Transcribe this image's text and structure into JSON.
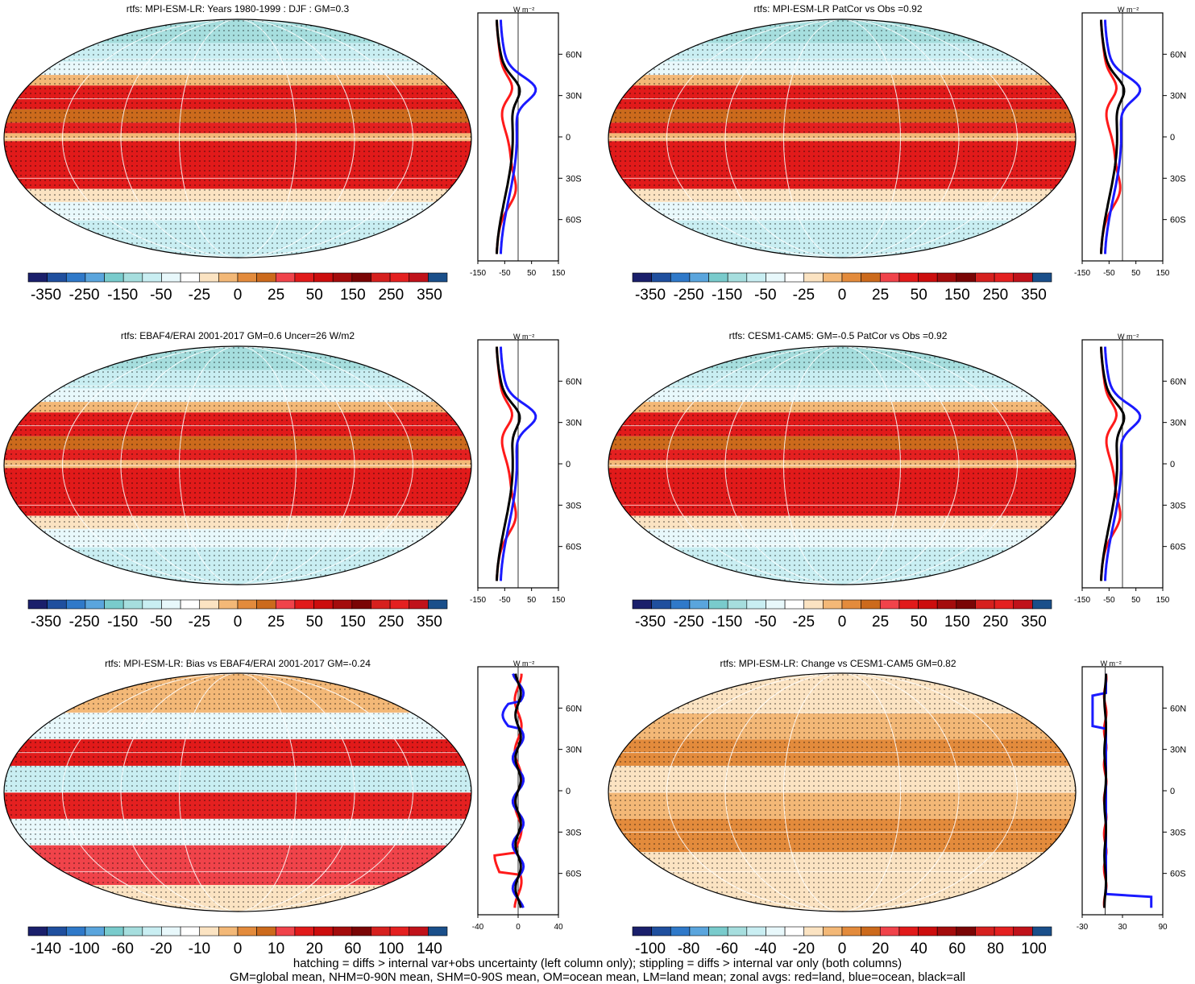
{
  "panels": [
    {
      "title": "rtfs: MPI-ESM-LR: Years 1980-1999 : DJF : GM=0.3",
      "scheme": "clim",
      "cb": 0,
      "zx": 0
    },
    {
      "title": "rtfs: MPI-ESM-LR PatCor vs Obs =0.92",
      "scheme": "clim",
      "cb": 0,
      "zx": 0
    },
    {
      "title": "rtfs: EBAF4/ERAI 2001-2017 GM=0.6 Uncer=26 W/m2",
      "scheme": "clim",
      "cb": 0,
      "zx": 0
    },
    {
      "title": "rtfs: CESM1-CAM5: GM=-0.5 PatCor vs Obs =0.92",
      "scheme": "clim",
      "cb": 0,
      "zx": 0
    },
    {
      "title": "rtfs: MPI-ESM-LR: Bias vs EBAF4/ERAI 2001-2017 GM=-0.24",
      "scheme": "bias",
      "cb": 1,
      "zx": 1
    },
    {
      "title": "rtfs: MPI-ESM-LR: Change vs CESM1-CAM5 GM=0.82",
      "scheme": "change",
      "cb": 2,
      "zx": 2
    }
  ],
  "colorbars": [
    {
      "ticks": [
        "-350",
        "-250",
        "-150",
        "-50",
        "-25",
        "0",
        "25",
        "50",
        "150",
        "250",
        "350"
      ]
    },
    {
      "ticks": [
        "-140",
        "-100",
        "-60",
        "-20",
        "-10",
        "0",
        "10",
        "20",
        "60",
        "100",
        "140"
      ]
    },
    {
      "ticks": [
        "-100",
        "-80",
        "-60",
        "-40",
        "-20",
        "0",
        "20",
        "40",
        "60",
        "80",
        "100"
      ]
    }
  ],
  "zonal_axes": [
    {
      "xticks": [
        "-150",
        "-50",
        "50",
        "150"
      ]
    },
    {
      "xticks": [
        "-40",
        "0",
        "40"
      ]
    },
    {
      "xticks": [
        "-30",
        "30",
        "90"
      ]
    }
  ],
  "chart_data": {
    "type": "heatmap",
    "units": "W m⁻²",
    "lat_labels": [
      "60N",
      "30N",
      "0",
      "30S",
      "60S"
    ],
    "palette": [
      "#1a1f6b",
      "#1f4f9e",
      "#2f79c9",
      "#5aa5dd",
      "#79cbcc",
      "#a6dede",
      "#c9eef2",
      "#e8f8fb",
      "#ffffff",
      "#fbe3c2",
      "#f3b877",
      "#e38b3c",
      "#cc6a1c",
      "#f0434a",
      "#e11a1a",
      "#cc0d0d",
      "#a40c0c",
      "#7a0505",
      "#d6201e",
      "#e42020",
      "#c0121a",
      "#1a4f8a"
    ],
    "zonal_series": [
      "land (red)",
      "ocean (blue)",
      "all (black)"
    ]
  },
  "footnote": {
    "line1": "hatching = diffs > internal var+obs uncertainty (left column only); stippling = diffs > internal var only (both columns)",
    "line2": "GM=global mean, NHM=0-90N mean, SHM=0-90S mean, OM=ocean mean, LM=land mean; zonal avgs: red=land, blue=ocean, black=all"
  }
}
